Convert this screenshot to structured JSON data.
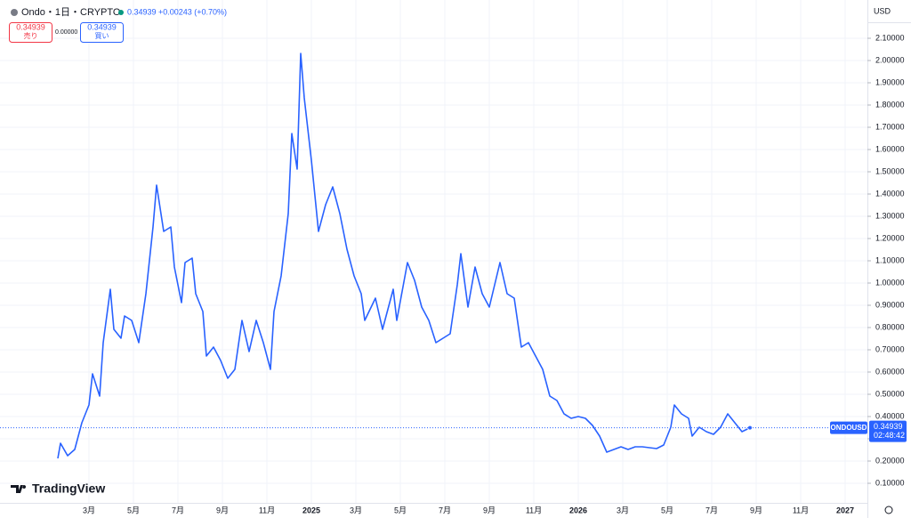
{
  "chart_data": {
    "type": "line",
    "symbol": "Ondo・1日・CRYPTO",
    "last": "0.34939",
    "change": "+0.00243 (+0.70%)",
    "sell": {
      "price": "0.34939",
      "label": "売り"
    },
    "spread": "0.00000",
    "buy": {
      "price": "0.34939",
      "label": "買い"
    },
    "currency": "USD",
    "brand": "TradingView",
    "price_label": {
      "name": "ONDOUSD",
      "value": 0.34939,
      "countdown": "02:48:42"
    },
    "grid": true,
    "xlim": [
      -2,
      37
    ],
    "ylim": [
      0.012,
      2.272
    ],
    "xticks": [
      {
        "value": 2,
        "label": "3月"
      },
      {
        "value": 4,
        "label": "5月"
      },
      {
        "value": 6,
        "label": "7月"
      },
      {
        "value": 8,
        "label": "9月"
      },
      {
        "value": 10,
        "label": "11月"
      },
      {
        "value": 12,
        "label": "2025"
      },
      {
        "value": 14,
        "label": "3月"
      },
      {
        "value": 16,
        "label": "5月"
      },
      {
        "value": 18,
        "label": "7月"
      },
      {
        "value": 20,
        "label": "9月"
      },
      {
        "value": 22,
        "label": "11月"
      },
      {
        "value": 24,
        "label": "2026"
      },
      {
        "value": 26,
        "label": "3月"
      },
      {
        "value": 28,
        "label": "5月"
      },
      {
        "value": 30,
        "label": "7月"
      },
      {
        "value": 32,
        "label": "9月"
      },
      {
        "value": 34,
        "label": "11月"
      },
      {
        "value": 36,
        "label": "2027"
      }
    ],
    "yticks": [
      {
        "value": 0.1,
        "label": "0.10000"
      },
      {
        "value": 0.2,
        "label": "0.20000"
      },
      {
        "value": 0.3,
        "label": "0.30000"
      },
      {
        "value": 0.4,
        "label": "0.40000"
      },
      {
        "value": 0.5,
        "label": "0.50000"
      },
      {
        "value": 0.6,
        "label": "0.60000"
      },
      {
        "value": 0.7,
        "label": "0.70000"
      },
      {
        "value": 0.8,
        "label": "0.80000"
      },
      {
        "value": 0.9,
        "label": "0.90000"
      },
      {
        "value": 1.0,
        "label": "1.00000"
      },
      {
        "value": 1.1,
        "label": "1.10000"
      },
      {
        "value": 1.2,
        "label": "1.20000"
      },
      {
        "value": 1.3,
        "label": "1.30000"
      },
      {
        "value": 1.4,
        "label": "1.40000"
      },
      {
        "value": 1.5,
        "label": "1.50000"
      },
      {
        "value": 1.6,
        "label": "1.60000"
      },
      {
        "value": 1.7,
        "label": "1.70000"
      },
      {
        "value": 1.8,
        "label": "1.80000"
      },
      {
        "value": 1.9,
        "label": "1.90000"
      },
      {
        "value": 2.0,
        "label": "2.00000"
      },
      {
        "value": 2.1,
        "label": "2.10000"
      }
    ],
    "series": [
      {
        "name": "ONDOUSD",
        "color": "#2962ff",
        "x": [
          0.6,
          0.72,
          1.04,
          1.36,
          1.68,
          2.0,
          2.16,
          2.48,
          2.64,
          2.96,
          3.12,
          3.44,
          3.6,
          3.92,
          4.24,
          4.56,
          4.88,
          5.04,
          5.36,
          5.68,
          5.84,
          6.16,
          6.32,
          6.64,
          6.8,
          7.12,
          7.28,
          7.6,
          7.92,
          8.24,
          8.56,
          8.88,
          9.2,
          9.52,
          9.84,
          10.16,
          10.32,
          10.64,
          10.96,
          11.12,
          11.36,
          11.52,
          11.68,
          12.0,
          12.32,
          12.64,
          12.96,
          13.28,
          13.6,
          13.92,
          14.24,
          14.4,
          14.88,
          15.2,
          15.68,
          15.84,
          16.32,
          16.64,
          16.96,
          17.28,
          17.6,
          17.92,
          18.24,
          18.56,
          18.72,
          19.04,
          19.36,
          19.68,
          20.0,
          20.48,
          20.8,
          21.12,
          21.44,
          21.76,
          22.08,
          22.4,
          22.72,
          23.04,
          23.36,
          23.68,
          24.0,
          24.32,
          24.64,
          24.96,
          25.28,
          25.6,
          25.92,
          26.24,
          26.56,
          26.88,
          27.2,
          27.52,
          27.84,
          28.16,
          28.32,
          28.64,
          28.96,
          29.12,
          29.44,
          29.76,
          30.08,
          30.4,
          30.72,
          31.04,
          31.36,
          31.72
        ],
        "values": [
          0.212,
          0.28,
          0.224,
          0.252,
          0.372,
          0.452,
          0.592,
          0.492,
          0.732,
          0.972,
          0.792,
          0.752,
          0.852,
          0.832,
          0.732,
          0.952,
          1.252,
          1.44,
          1.232,
          1.252,
          1.072,
          0.912,
          1.092,
          1.112,
          0.952,
          0.872,
          0.672,
          0.712,
          0.652,
          0.572,
          0.612,
          0.832,
          0.692,
          0.832,
          0.732,
          0.612,
          0.872,
          1.032,
          1.312,
          1.672,
          1.512,
          2.032,
          1.832,
          1.552,
          1.232,
          1.352,
          1.432,
          1.312,
          1.152,
          1.032,
          0.952,
          0.832,
          0.932,
          0.792,
          0.972,
          0.832,
          1.092,
          1.012,
          0.892,
          0.832,
          0.732,
          0.752,
          0.772,
          0.992,
          1.132,
          0.892,
          1.072,
          0.952,
          0.892,
          1.092,
          0.952,
          0.932,
          0.712,
          0.732,
          0.672,
          0.612,
          0.492,
          0.472,
          0.412,
          0.392,
          0.4,
          0.392,
          0.36,
          0.312,
          0.24,
          0.252,
          0.264,
          0.252,
          0.264,
          0.264,
          0.26,
          0.256,
          0.272,
          0.352,
          0.452,
          0.412,
          0.392,
          0.312,
          0.352,
          0.332,
          0.32,
          0.352,
          0.412,
          0.372,
          0.332,
          0.34939
        ]
      }
    ]
  }
}
